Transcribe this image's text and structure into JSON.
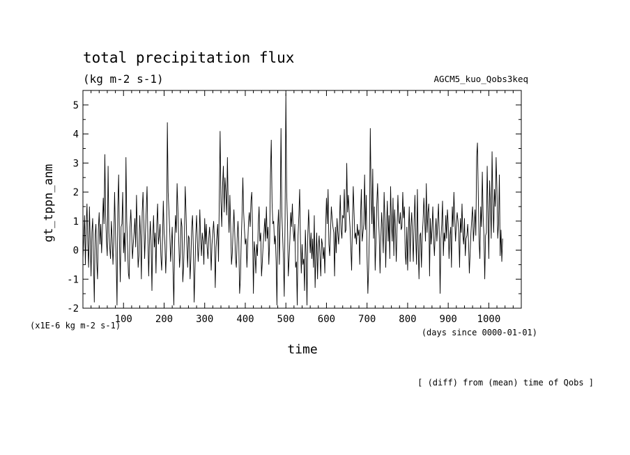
{
  "chart_data": {
    "type": "line",
    "title": "total precipitation flux",
    "subtitle": "(kg m-2 s-1)",
    "experiment": "AGCM5_kuo_Qobs3keq",
    "ylabel": "gt_tppn_anm",
    "y_unit_note": "(x1E-6 kg m-2 s-1)",
    "xlabel": "time",
    "x_unit_note": "(days since 0000-01-01)",
    "footer_note": "[ (diff) from (mean) time of Qobs ]",
    "xlim": [
      0,
      1080
    ],
    "ylim": [
      -2,
      5.5
    ],
    "xticks_major": [
      100,
      200,
      300,
      400,
      500,
      600,
      700,
      800,
      900,
      1000
    ],
    "yticks_major": [
      -2,
      -1,
      0,
      1,
      2,
      3,
      4,
      5
    ],
    "series": [
      {
        "color": "#000000",
        "sample_every_days": 2,
        "x_start": 0,
        "values": [
          -0.3,
          0.4,
          1.2,
          -0.5,
          0.8,
          1.6,
          0.2,
          -0.6,
          1.5,
          0.3,
          -0.9,
          0.6,
          1.1,
          -0.3,
          -1.8,
          0.5,
          0.9,
          -0.4,
          -1.0,
          0.7,
          1.3,
          0.2,
          0.9,
          -0.1,
          0.7,
          1.8,
          0.9,
          3.3,
          1.2,
          0.3,
          -0.2,
          2.9,
          0.6,
          0.1,
          -0.3,
          1.0,
          0.4,
          -0.5,
          0.3,
          2.0,
          0.7,
          -0.4,
          -1.9,
          1.5,
          2.6,
          0.3,
          -1.1,
          0.8,
          0.9,
          2.0,
          -0.1,
          0.6,
          -0.4,
          3.2,
          1.0,
          0.1,
          -0.8,
          -1.0,
          0.8,
          1.4,
          0.6,
          -0.3,
          0.2,
          0.6,
          1.1,
          0.1,
          1.9,
          0.5,
          -0.6,
          -0.2,
          1.2,
          0.5,
          -1.0,
          1.3,
          2.0,
          1.0,
          -0.3,
          0.6,
          1.4,
          2.2,
          0.4,
          -0.9,
          0.3,
          1.0,
          0.2,
          -1.4,
          0.4,
          1.2,
          0.1,
          0.6,
          -0.8,
          0.9,
          1.6,
          0.2,
          0.5,
          0.9,
          -0.2,
          -0.7,
          0.3,
          1.7,
          0.6,
          0.2,
          -0.8,
          0.1,
          4.4,
          2.0,
          1.3,
          0.6,
          -0.4,
          0.2,
          0.8,
          -0.7,
          -1.9,
          0.3,
          1.2,
          0.6,
          2.3,
          1.4,
          0.4,
          -0.6,
          -0.1,
          1.1,
          0.8,
          -1.1,
          -0.6,
          0.5,
          2.2,
          1.3,
          0.2,
          -0.6,
          0.5,
          0.4,
          -1.0,
          -0.3,
          0.8,
          1.2,
          0.1,
          -1.8,
          -0.7,
          0.5,
          1.2,
          0.3,
          -0.4,
          0.2,
          1.4,
          0.4,
          -0.2,
          0.6,
          0.3,
          -0.5,
          1.1,
          0.2,
          0.9,
          0.1,
          -0.3,
          0.4,
          0.8,
          0.3,
          -0.7,
          0.2,
          0.6,
          1.0,
          0.4,
          -1.3,
          0.1,
          0.5,
          0.9,
          -0.4,
          1.8,
          4.1,
          1.7,
          0.8,
          2.2,
          2.9,
          1.3,
          2.5,
          2.0,
          1.2,
          3.2,
          1.5,
          0.6,
          1.9,
          0.8,
          -0.5,
          -0.1,
          0.7,
          1.4,
          0.6,
          -0.3,
          -0.6,
          0.4,
          1.0,
          0.3,
          -1.5,
          -1.0,
          0.3,
          1.2,
          2.5,
          1.3,
          0.7,
          0.2,
          0.4,
          -0.6,
          0.2,
          1.0,
          1.3,
          0.8,
          1.7,
          2.0,
          0.6,
          -1.5,
          0.3,
          -0.1,
          -0.8,
          0.2,
          -0.2,
          0.9,
          1.5,
          0.3,
          0.6,
          -0.9,
          -0.4,
          0.2,
          0.6,
          1.1,
          0.3,
          1.5,
          0.4,
          0.8,
          -0.5,
          0.3,
          2.6,
          3.8,
          1.6,
          0.9,
          1.0,
          0.2,
          0.5,
          -0.4,
          -1.9,
          0.8,
          1.4,
          -0.5,
          1.1,
          4.2,
          1.3,
          0.5,
          -0.3,
          -1.6,
          1.0,
          5.4,
          2.0,
          0.9,
          -0.9,
          -0.3,
          0.4,
          1.3,
          0.8,
          1.6,
          0.7,
          0.3,
          0.9,
          -0.6,
          -0.4,
          -1.9,
          0.5,
          1.2,
          2.1,
          0.3,
          -0.8,
          0.2,
          -0.5,
          -0.3,
          -1.4,
          0.7,
          -0.2,
          -1.9,
          0.5,
          1.4,
          0.6,
          -0.1,
          0.6,
          -0.3,
          0.4,
          -0.6,
          1.2,
          -1.3,
          -0.2,
          0.6,
          -1.0,
          0.1,
          0.5,
          -0.2,
          -0.9,
          0.4,
          0.2,
          -0.3,
          0.1,
          -0.8,
          0.8,
          1.8,
          0.9,
          2.1,
          0.2,
          -0.2,
          0.6,
          1.5,
          1.1,
          0.8,
          0.6,
          -0.9,
          0.8,
          -0.1,
          1.1,
          0.6,
          0.2,
          0.9,
          1.9,
          0.7,
          0.4,
          1.2,
          1.1,
          2.1,
          0.6,
          0.7,
          3.0,
          1.3,
          1.9,
          1.3,
          0.8,
          0.1,
          -0.7,
          0.9,
          2.2,
          1.3,
          0.4,
          0.6,
          0.2,
          0.9,
          0.5,
          0.7,
          -0.5,
          1.2,
          2.1,
          0.3,
          0.6,
          0.9,
          2.6,
          0.7,
          1.9,
          -0.2,
          -1.5,
          -0.6,
          0.8,
          4.2,
          2.0,
          0.9,
          2.8,
          0.4,
          1.5,
          -0.7,
          0.3,
          1.6,
          2.3,
          1.2,
          0.5,
          -0.8,
          0.4,
          1.3,
          0.7,
          -0.1,
          2.0,
          1.1,
          -0.6,
          0.8,
          1.7,
          0.3,
          1.2,
          -0.3,
          2.2,
          1.0,
          0.3,
          1.8,
          -0.2,
          1.4,
          0.7,
          -0.4,
          0.8,
          1.9,
          1.0,
          0.9,
          1.3,
          0.7,
          0.8,
          2.0,
          1.1,
          1.5,
          -0.1,
          -0.5,
          0.8,
          -0.7,
          0.6,
          1.5,
          -0.4,
          0.8,
          1.3,
          0.5,
          -0.4,
          1.0,
          1.9,
          0.4,
          -0.5,
          2.1,
          0.2,
          -1.0,
          0.5,
          0.6,
          -0.6,
          0.5,
          1.0,
          1.8,
          1.1,
          0.3,
          2.3,
          0.6,
          1.3,
          1.6,
          -0.9,
          1.1,
          0.2,
          0.7,
          1.5,
          0.4,
          -0.2,
          0.6,
          1.1,
          0.3,
          0.9,
          1.6,
          0.5,
          -1.5,
          0.4,
          0.9,
          1.7,
          -0.2,
          0.6,
          0.3,
          1.2,
          0.4,
          1.4,
          0.9,
          -0.3,
          0.5,
          0.8,
          -0.6,
          1.5,
          0.8,
          2.0,
          1.1,
          0.3,
          0.9,
          1.3,
          1.0,
          0.6,
          -0.6,
          1.1,
          0.6,
          1.6,
          0.5,
          0.2,
          1.1,
          -0.2,
          0.4,
          0.5,
          0.9,
          0.3,
          -0.8,
          -0.1,
          0.6,
          1.1,
          1.5,
          0.3,
          0.8,
          1.4,
          0.5,
          3.2,
          3.7,
          2.0,
          0.3,
          -0.3,
          1.5,
          0.8,
          2.7,
          1.2,
          0.5,
          -1.0,
          0.5,
          0.6,
          2.9,
          1.3,
          -0.3,
          2.4,
          1.6,
          0.4,
          3.4,
          1.7,
          0.6,
          2.1,
          1.5,
          3.2,
          2.1,
          0.4,
          0.9,
          2.6,
          -0.2,
          0.7,
          -0.4,
          0.4
        ]
      }
    ]
  }
}
